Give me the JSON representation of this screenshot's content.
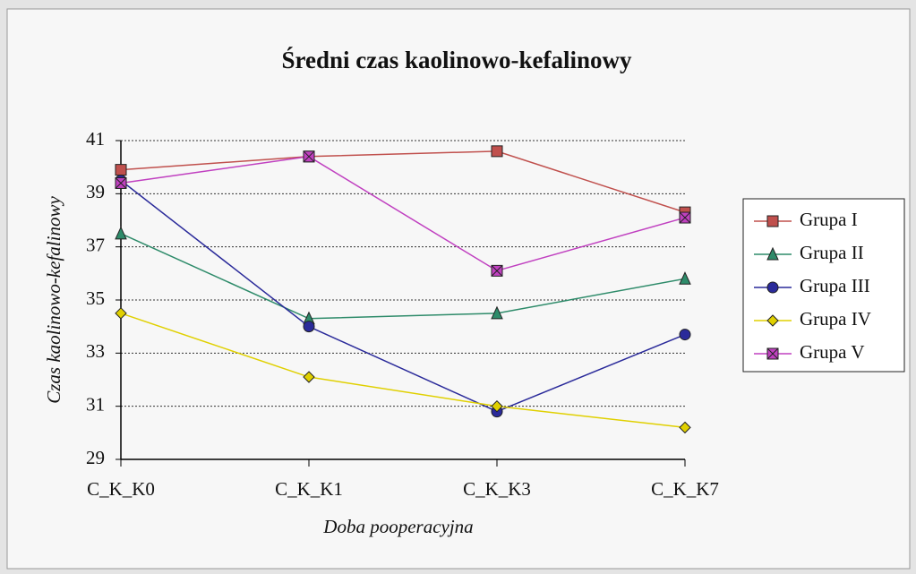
{
  "chart_data": {
    "type": "line",
    "title": "Średni czas kaolinowo-kefalinowy",
    "x_label": "Doba pooperacyjna",
    "y_label": "Czas kaolinowo-kefalinowy",
    "categories": [
      "C_K_K0",
      "C_K_K1",
      "C_K_K3",
      "C_K_K7"
    ],
    "series": [
      {
        "name": "Grupa I",
        "color": "#c0504d",
        "marker": "square",
        "values": [
          39.9,
          40.4,
          40.6,
          38.3
        ]
      },
      {
        "name": "Grupa II",
        "color": "#2e8b6a",
        "marker": "triangle",
        "values": [
          37.5,
          34.3,
          34.5,
          35.8
        ]
      },
      {
        "name": "Grupa III",
        "color": "#2a2a9a",
        "marker": "circle",
        "values": [
          39.5,
          34.0,
          30.8,
          33.7
        ]
      },
      {
        "name": "Grupa IV",
        "color": "#e0d000",
        "marker": "diamond",
        "values": [
          34.5,
          32.1,
          31.0,
          30.2
        ]
      },
      {
        "name": "Grupa V",
        "color": "#c040c0",
        "marker": "xsquare",
        "values": [
          39.4,
          40.4,
          36.1,
          38.1
        ]
      }
    ],
    "ylim": [
      29,
      41
    ],
    "yticks": [
      29,
      31,
      33,
      35,
      37,
      39,
      41
    ],
    "grid": true,
    "legend": "right"
  }
}
